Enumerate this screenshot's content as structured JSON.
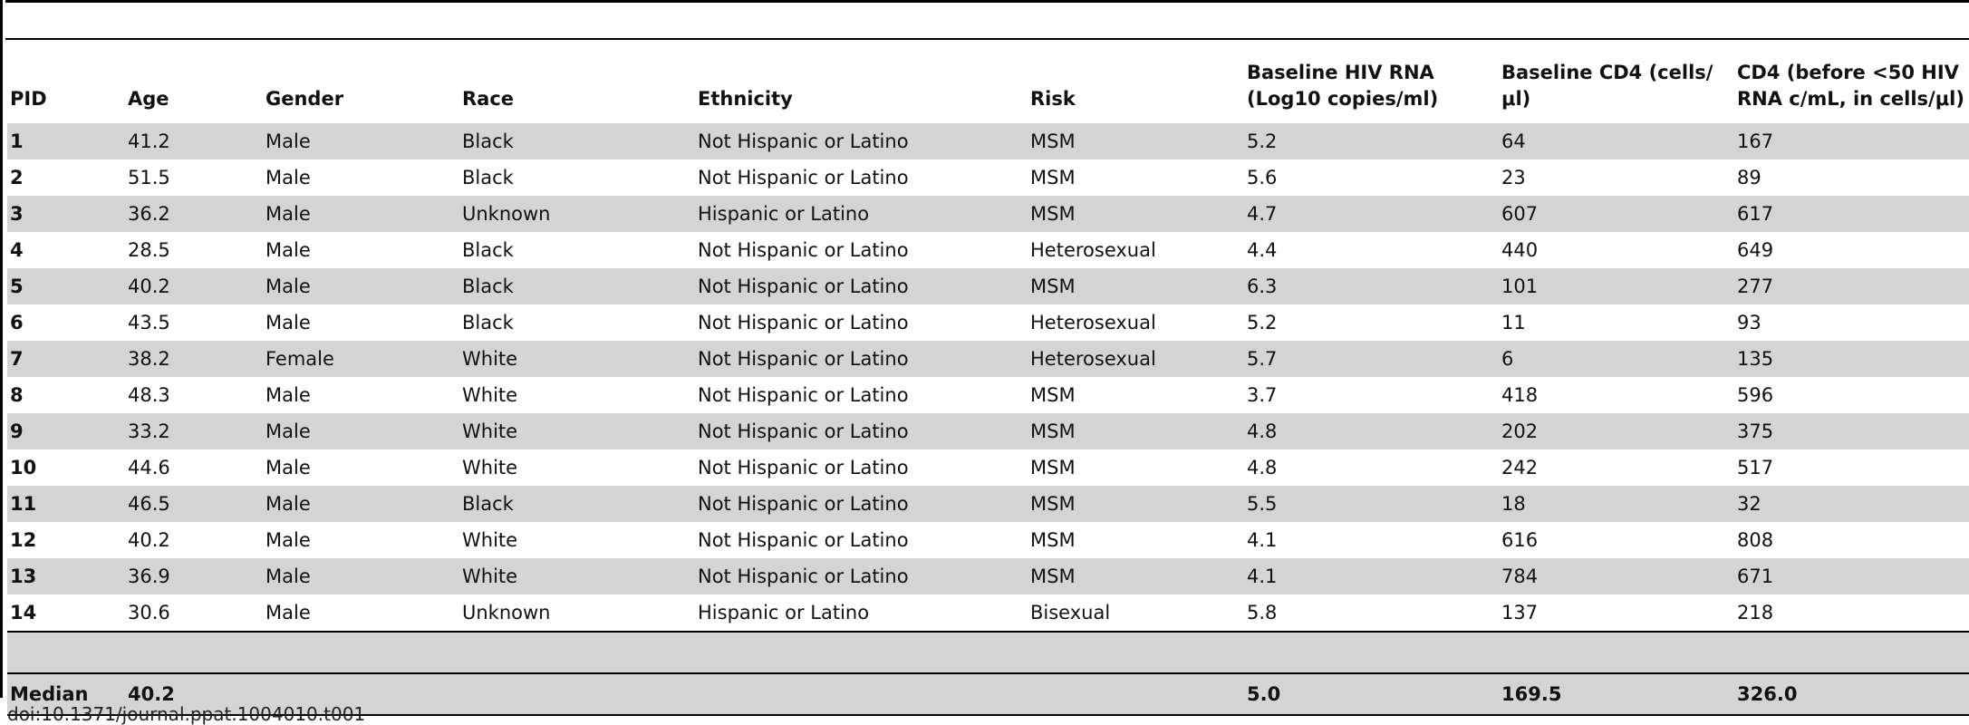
{
  "table": {
    "headers": [
      "PID",
      "Age",
      "Gender",
      "Race",
      "Ethnicity",
      "Risk",
      "Baseline HIV RNA (Log10 copies/ml)",
      "Baseline CD4 (cells/μl)",
      "CD4 (before <50 HIV RNA c/mL, in cells/μl)"
    ],
    "rows": [
      [
        "1",
        "41.2",
        "Male",
        "Black",
        "Not Hispanic or Latino",
        "MSM",
        "5.2",
        "64",
        "167"
      ],
      [
        "2",
        "51.5",
        "Male",
        "Black",
        "Not Hispanic or Latino",
        "MSM",
        "5.6",
        "23",
        "89"
      ],
      [
        "3",
        "36.2",
        "Male",
        "Unknown",
        "Hispanic or Latino",
        "MSM",
        "4.7",
        "607",
        "617"
      ],
      [
        "4",
        "28.5",
        "Male",
        "Black",
        "Not Hispanic or Latino",
        "Heterosexual",
        "4.4",
        "440",
        "649"
      ],
      [
        "5",
        "40.2",
        "Male",
        "Black",
        "Not Hispanic or Latino",
        "MSM",
        "6.3",
        "101",
        "277"
      ],
      [
        "6",
        "43.5",
        "Male",
        "Black",
        "Not Hispanic or Latino",
        "Heterosexual",
        "5.2",
        "11",
        "93"
      ],
      [
        "7",
        "38.2",
        "Female",
        "White",
        "Not Hispanic or Latino",
        "Heterosexual",
        "5.7",
        "6",
        "135"
      ],
      [
        "8",
        "48.3",
        "Male",
        "White",
        "Not Hispanic or Latino",
        "MSM",
        "3.7",
        "418",
        "596"
      ],
      [
        "9",
        "33.2",
        "Male",
        "White",
        "Not Hispanic or Latino",
        "MSM",
        "4.8",
        "202",
        "375"
      ],
      [
        "10",
        "44.6",
        "Male",
        "White",
        "Not Hispanic or Latino",
        "MSM",
        "4.8",
        "242",
        "517"
      ],
      [
        "11",
        "46.5",
        "Male",
        "Black",
        "Not Hispanic or Latino",
        "MSM",
        "5.5",
        "18",
        "32"
      ],
      [
        "12",
        "40.2",
        "Male",
        "White",
        "Not Hispanic or Latino",
        "MSM",
        "4.1",
        "616",
        "808"
      ],
      [
        "13",
        "36.9",
        "Male",
        "White",
        "Not Hispanic or Latino",
        "MSM",
        "4.1",
        "784",
        "671"
      ],
      [
        "14",
        "30.6",
        "Male",
        "Unknown",
        "Hispanic or Latino",
        "Bisexual",
        "5.8",
        "137",
        "218"
      ]
    ],
    "median": {
      "label": "Median",
      "age": "40.2",
      "hiv_rna": "5.0",
      "cd4_baseline": "169.5",
      "cd4_before": "326.0"
    }
  },
  "footer": {
    "doi": "doi:10.1371/journal.ppat.1004010.t001"
  }
}
